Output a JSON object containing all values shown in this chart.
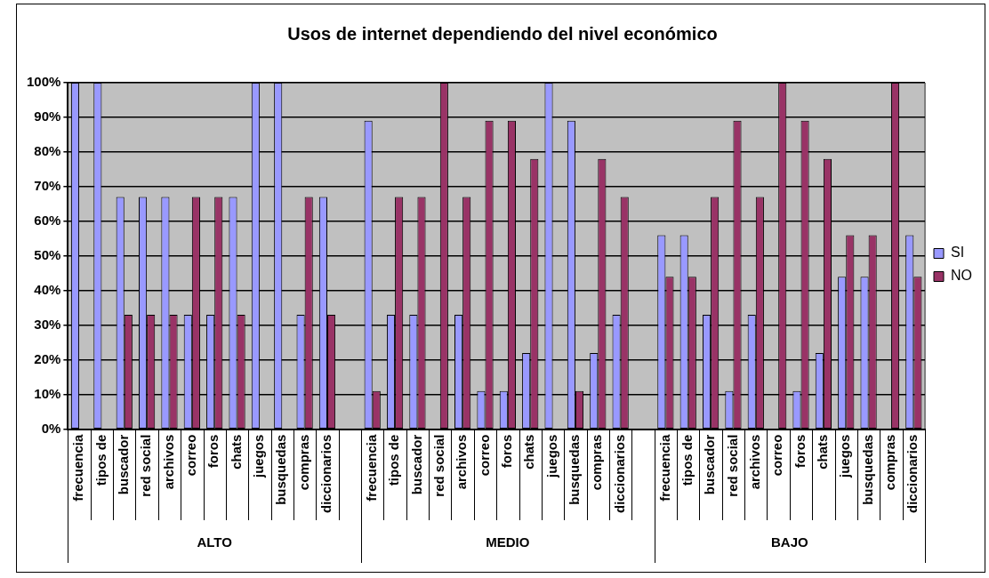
{
  "chart_data": {
    "type": "bar",
    "title": "Usos de internet dependiendo del nivel económico",
    "categories": [
      "frecuencia",
      "tipos de",
      "buscador",
      "red social",
      "archivos",
      "correo",
      "foros",
      "chats",
      "juegos",
      "busquedas",
      "compras",
      "diccionarios",
      null,
      "frecuencia",
      "tipos de",
      "buscador",
      "red social",
      "archivos",
      "correo",
      "foros",
      "chats",
      "juegos",
      "busquedas",
      "compras",
      "diccionarios",
      null,
      "frecuencia",
      "tipos de",
      "buscador",
      "red social",
      "archivos",
      "correo",
      "foros",
      "chats",
      "juegos",
      "busquedas",
      "compras",
      "diccionarios"
    ],
    "series": [
      {
        "name": "SI",
        "color": "#9999ff",
        "values": [
          100,
          100,
          67,
          67,
          67,
          33,
          33,
          67,
          100,
          100,
          33,
          67,
          null,
          89,
          33,
          33,
          0,
          33,
          11,
          11,
          22,
          100,
          89,
          22,
          33,
          null,
          56,
          56,
          33,
          11,
          33,
          0,
          11,
          22,
          44,
          44,
          0,
          56
        ]
      },
      {
        "name": "NO",
        "color": "#993366",
        "values": [
          0,
          0,
          33,
          33,
          33,
          67,
          67,
          33,
          0,
          0,
          67,
          33,
          null,
          11,
          67,
          67,
          100,
          67,
          89,
          89,
          78,
          0,
          11,
          78,
          67,
          null,
          44,
          44,
          67,
          89,
          67,
          100,
          89,
          78,
          56,
          56,
          100,
          44
        ]
      }
    ],
    "annotations": [
      "ALTO",
      "MEDIO",
      "BAJO"
    ],
    "ylim": [
      0,
      100
    ],
    "yticks": [
      {
        "value": 0,
        "label": "0%"
      },
      {
        "value": 10,
        "label": "10%"
      },
      {
        "value": 20,
        "label": "20%"
      },
      {
        "value": 30,
        "label": "30%"
      },
      {
        "value": 40,
        "label": "40%"
      },
      {
        "value": 50,
        "label": "50%"
      },
      {
        "value": 60,
        "label": "60%"
      },
      {
        "value": 70,
        "label": "70%"
      },
      {
        "value": 80,
        "label": "80%"
      },
      {
        "value": 90,
        "label": "90%"
      },
      {
        "value": 100,
        "label": "100%"
      }
    ],
    "grid": "y",
    "legend": "right"
  }
}
